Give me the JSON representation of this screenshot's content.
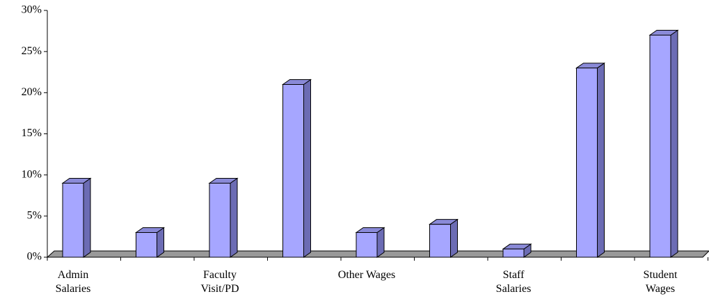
{
  "chart_data": {
    "type": "bar3d",
    "categories": [
      "Admin\nSalaries",
      null,
      "Faculty\nVisit/PD",
      null,
      "Other Wages",
      null,
      "Staff\nSalaries",
      null,
      "Student\nWages"
    ],
    "values": [
      9,
      3,
      9,
      21,
      3,
      4,
      1,
      23,
      27
    ],
    "color": "#a6a6ff",
    "ylim": [
      0,
      30
    ],
    "yticks": [
      {
        "value": 0,
        "label": "0%"
      },
      {
        "value": 5,
        "label": "5%"
      },
      {
        "value": 10,
        "label": "10%"
      },
      {
        "value": 15,
        "label": "15%"
      },
      {
        "value": 20,
        "label": "20%"
      },
      {
        "value": 25,
        "label": "25%"
      },
      {
        "value": 30,
        "label": "30%"
      }
    ]
  }
}
